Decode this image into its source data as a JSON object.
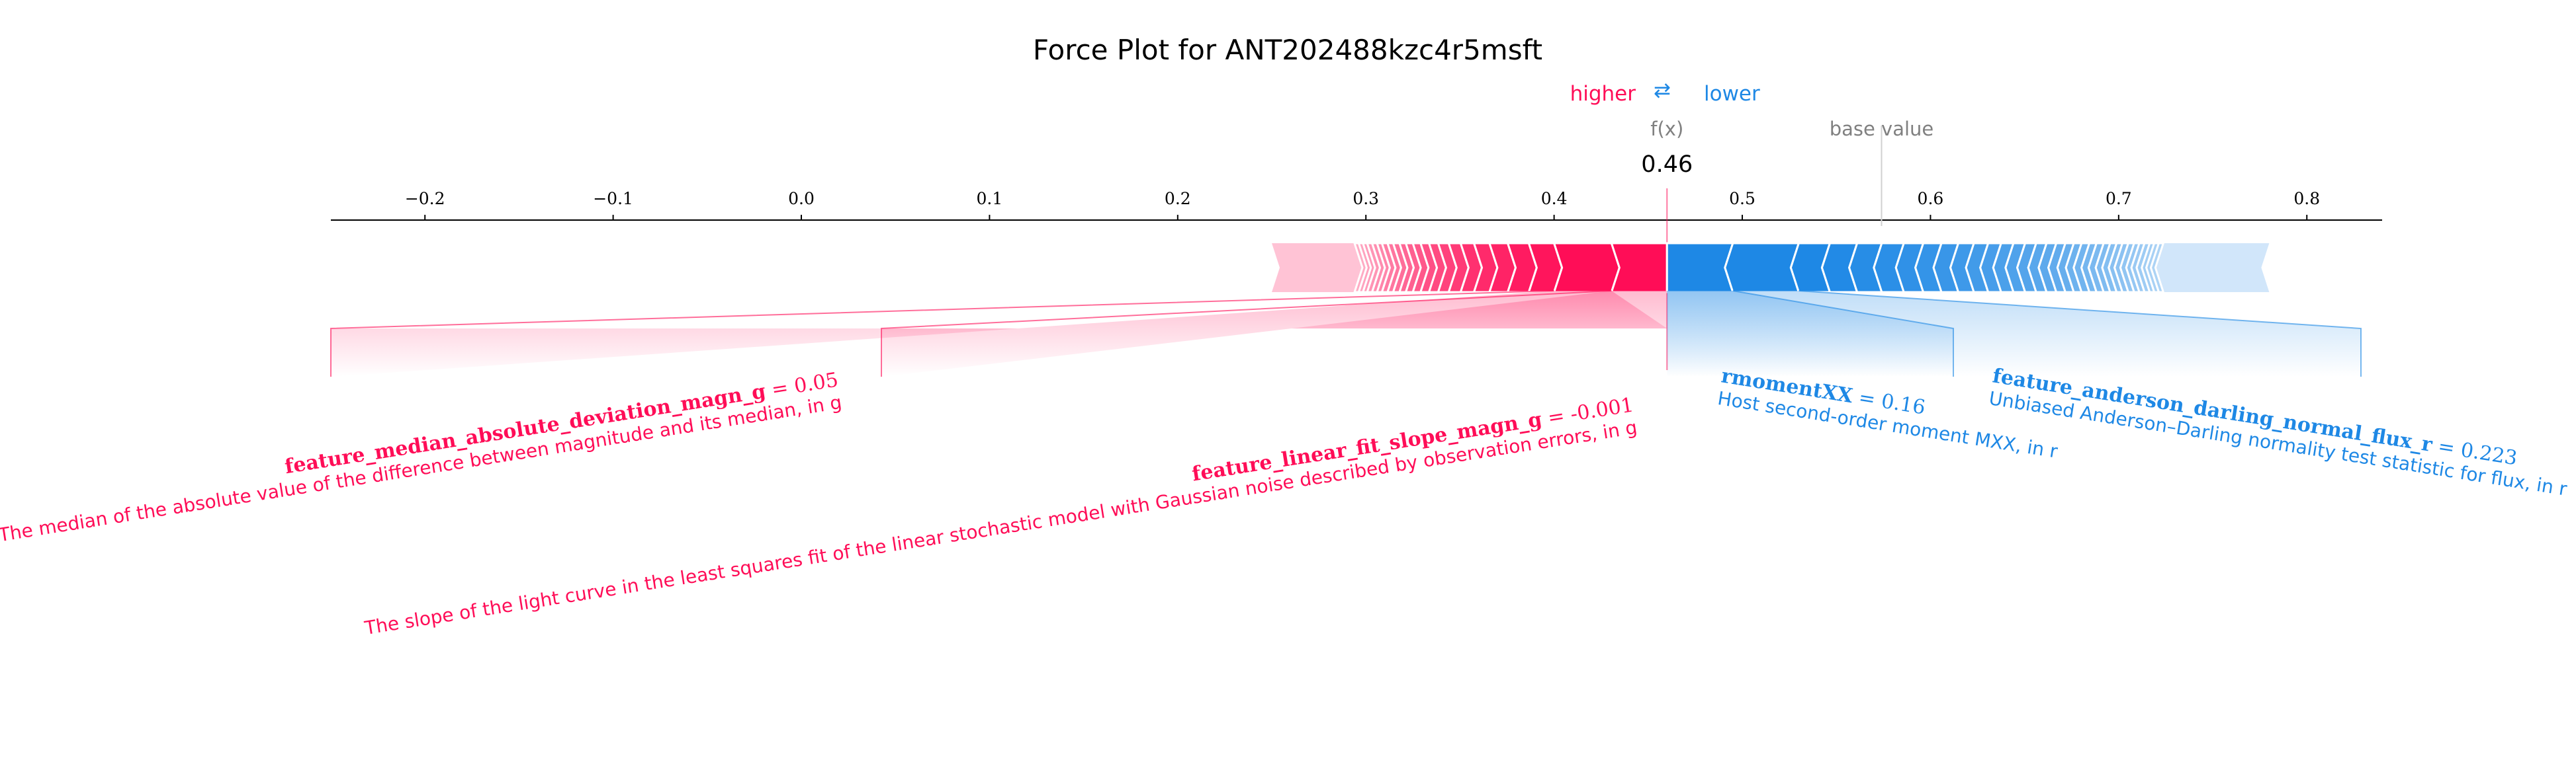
{
  "chart_data": {
    "type": "force",
    "title": "Force Plot for ANT202488kzc4r5msft",
    "legend": {
      "higher": "higher",
      "lower": "lower",
      "arrows": "⇄"
    },
    "colors": {
      "positive": "#ff0d57",
      "negative": "#1e88e5",
      "positive_light": "#ffc3d5",
      "negative_light": "#d1e6fa",
      "gray": "#808080"
    },
    "xlim": [
      -0.25,
      0.84
    ],
    "ticks": [
      -0.2,
      -0.1,
      0.0,
      0.1,
      0.2,
      0.3,
      0.4,
      0.5,
      0.6,
      0.7,
      0.8
    ],
    "tick_labels": [
      "−0.2",
      "−0.1",
      "0.0",
      "0.1",
      "0.2",
      "0.3",
      "0.4",
      "0.5",
      "0.6",
      "0.7",
      "0.8"
    ],
    "output_value": 0.46,
    "output_label": "f(x)",
    "output_value_label": "0.46",
    "base_value": 0.574,
    "base_value_label": "base value",
    "bar_start": 0.25,
    "bar_end": 0.78,
    "positive_features": [
      {
        "name": "feature_median_absolute_deviation_magn_g",
        "value": "0.05",
        "description": "The median of the absolute value of the difference between magnitude and its median, in g",
        "start": 0.4,
        "end": 0.4305
      },
      {
        "name": "feature_linear_fit_slope_magn_g",
        "value": "-0.001",
        "description": "The slope of the light curve in the least squares fit of the linear stochastic model with Gaussian noise described by observation errors, in g",
        "start": 0.4305,
        "end": 0.46
      }
    ],
    "negative_features": [
      {
        "name": "rmomentXX",
        "value": "0.16",
        "description": "Host second-order moment MXX, in r",
        "start": 0.46,
        "end": 0.495
      },
      {
        "name": "feature_anderson_darling_normal_flux_r",
        "value": "0.223",
        "description": "Unbiased Anderson–Darling normality test statistic for flux, in r",
        "start": 0.495,
        "end": 0.53
      }
    ]
  }
}
